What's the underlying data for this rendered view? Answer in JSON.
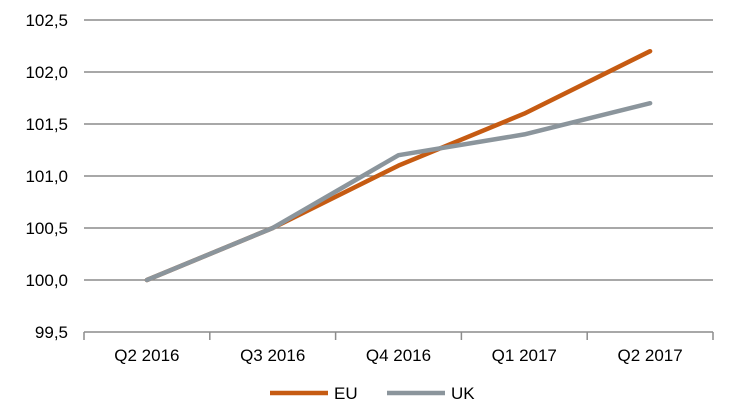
{
  "chart_data": {
    "type": "line",
    "title": "",
    "xlabel": "",
    "ylabel": "",
    "categories": [
      "Q2 2016",
      "Q3 2016",
      "Q4 2016",
      "Q1 2017",
      "Q2 2017"
    ],
    "ylim": [
      99.5,
      102.5
    ],
    "yticks": [
      99.5,
      100.0,
      100.5,
      101.0,
      101.5,
      102.0,
      102.5
    ],
    "ytick_labels": [
      "99,5",
      "100,0",
      "100,5",
      "101,0",
      "101,5",
      "102,0",
      "102,5"
    ],
    "grid": "horizontal",
    "legend_position": "bottom",
    "series": [
      {
        "name": "EU",
        "color": "#C65B12",
        "values": [
          100.0,
          100.5,
          101.1,
          101.6,
          102.2
        ]
      },
      {
        "name": "UK",
        "color": "#8B959C",
        "values": [
          100.0,
          100.5,
          101.2,
          101.4,
          101.7
        ]
      }
    ]
  }
}
